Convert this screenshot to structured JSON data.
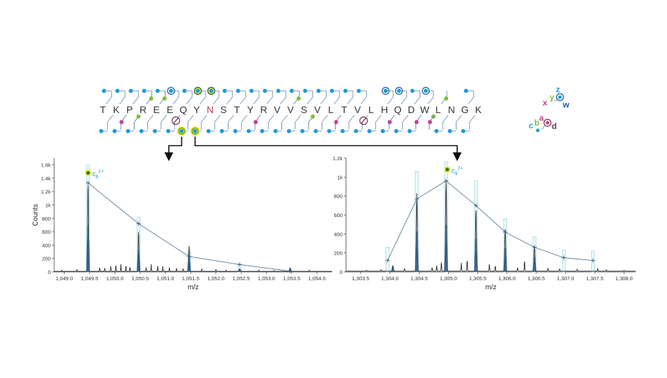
{
  "sequence": {
    "residues": [
      "T",
      "K",
      "P",
      "R",
      "E",
      "E",
      "Q",
      "Y",
      "N",
      "S",
      "T",
      "Y",
      "R",
      "V",
      "V",
      "S",
      "V",
      "L",
      "T",
      "V",
      "L",
      "H",
      "Q",
      "D",
      "W",
      "L",
      "N",
      "G",
      "K"
    ],
    "highlighted_residue_index": 8,
    "colors": {
      "residue": "#333333",
      "highlight": "#c0334d",
      "z_ion": "#1e9bd7",
      "y_ion": "#7dbd3f",
      "c_ion": "#1e9bd7",
      "b_ion": "#7dbd3f",
      "a_ion": "#c2449a",
      "ring": "#1a5a9a",
      "selected": "#f2ea1e",
      "unobserved": "#7a3050"
    },
    "top_ions": [
      {
        "after": 0,
        "kind": "z"
      },
      {
        "after": 1,
        "kind": "z"
      },
      {
        "after": 2,
        "kind": "z"
      },
      {
        "after": 3,
        "kind": "z"
      },
      {
        "after": 3,
        "kind": "y"
      },
      {
        "after": 4,
        "kind": "z"
      },
      {
        "after": 4,
        "kind": "y"
      },
      {
        "after": 5,
        "kind": "z-ring"
      },
      {
        "after": 6,
        "kind": "z"
      },
      {
        "after": 7,
        "kind": "z-selected"
      },
      {
        "after": 8,
        "kind": "z-selected"
      },
      {
        "after": 9,
        "kind": "z"
      },
      {
        "after": 10,
        "kind": "z"
      },
      {
        "after": 11,
        "kind": "z"
      },
      {
        "after": 12,
        "kind": "z"
      },
      {
        "after": 13,
        "kind": "z"
      },
      {
        "after": 14,
        "kind": "z"
      },
      {
        "after": 14,
        "kind": "y"
      },
      {
        "after": 15,
        "kind": "z"
      },
      {
        "after": 16,
        "kind": "z"
      },
      {
        "after": 17,
        "kind": "z"
      },
      {
        "after": 18,
        "kind": "z"
      },
      {
        "after": 19,
        "kind": "z"
      },
      {
        "after": 21,
        "kind": "z-ring"
      },
      {
        "after": 22,
        "kind": "z-ring"
      },
      {
        "after": 23,
        "kind": "z"
      },
      {
        "after": 24,
        "kind": "z-ring"
      },
      {
        "after": 25,
        "kind": "y"
      },
      {
        "after": 27,
        "kind": "z"
      }
    ],
    "bottom_ions": [
      {
        "after": 0,
        "kind": "c"
      },
      {
        "after": 1,
        "kind": "c"
      },
      {
        "after": 1,
        "kind": "a"
      },
      {
        "after": 2,
        "kind": "c"
      },
      {
        "after": 2,
        "kind": "b"
      },
      {
        "after": 3,
        "kind": "c"
      },
      {
        "after": 4,
        "kind": "c"
      },
      {
        "after": 5,
        "kind": "unobserved"
      },
      {
        "after": 6,
        "kind": "c-selected"
      },
      {
        "after": 7,
        "kind": "c-selected"
      },
      {
        "after": 8,
        "kind": "c"
      },
      {
        "after": 9,
        "kind": "c"
      },
      {
        "after": 10,
        "kind": "c"
      },
      {
        "after": 11,
        "kind": "c"
      },
      {
        "after": 11,
        "kind": "a"
      },
      {
        "after": 12,
        "kind": "c"
      },
      {
        "after": 13,
        "kind": "c"
      },
      {
        "after": 14,
        "kind": "c"
      },
      {
        "after": 15,
        "kind": "c"
      },
      {
        "after": 15,
        "kind": "b"
      },
      {
        "after": 16,
        "kind": "c"
      },
      {
        "after": 17,
        "kind": "c"
      },
      {
        "after": 17,
        "kind": "a"
      },
      {
        "after": 18,
        "kind": "c"
      },
      {
        "after": 19,
        "kind": "unobserved"
      },
      {
        "after": 20,
        "kind": "c"
      },
      {
        "after": 21,
        "kind": "c"
      },
      {
        "after": 21,
        "kind": "a"
      },
      {
        "after": 22,
        "kind": "c"
      },
      {
        "after": 23,
        "kind": "c"
      },
      {
        "after": 23,
        "kind": "a"
      },
      {
        "after": 24,
        "kind": "b"
      },
      {
        "after": 24,
        "kind": "a"
      },
      {
        "after": 25,
        "kind": "c"
      },
      {
        "after": 26,
        "kind": "c"
      },
      {
        "after": 27,
        "kind": "c"
      }
    ],
    "selected_links": [
      {
        "from_ion_after": 6,
        "to_panel": 0
      },
      {
        "from_ion_after": 7,
        "to_panel": 1
      }
    ]
  },
  "legend": {
    "labels": [
      "z",
      "w",
      "y",
      "x",
      "a",
      "d",
      "b",
      "c"
    ]
  },
  "chart_data": [
    {
      "type": "line",
      "xlabel": "m/z",
      "ylabel": "Counts",
      "xlim": [
        1048.8,
        1054.3
      ],
      "ylim": [
        0,
        1700
      ],
      "x_ticks": [
        1049.0,
        1049.5,
        1050.0,
        1050.5,
        1051.0,
        1051.5,
        1052.0,
        1052.5,
        1053.0,
        1053.5,
        1054.0
      ],
      "x_tick_labels": [
        "1,049.0",
        "1,049.5",
        "1,050.0",
        "1,050.5",
        "1,051.0",
        "1,051.5",
        "1,052.0",
        "1,052.5",
        "1,053.0",
        "1,053.5",
        "1,054.0"
      ],
      "y_ticks": [
        0,
        200,
        400,
        600,
        800,
        1000,
        1200,
        1400,
        1600
      ],
      "y_tick_labels": [
        "0",
        "200",
        "400",
        "600",
        "800",
        "1k",
        "1.2k",
        "1.4k",
        "1.6k"
      ],
      "ion_label": {
        "base": "c",
        "sub": "8",
        "sup": "1+",
        "x": 1049.47,
        "y": 1480
      },
      "peaks": [
        {
          "x": 1049.47,
          "y": 1330
        },
        {
          "x": 1050.47,
          "y": 600
        },
        {
          "x": 1051.47,
          "y": 380
        },
        {
          "x": 1052.47,
          "y": 40
        },
        {
          "x": 1053.47,
          "y": 50
        }
      ],
      "noise": [
        {
          "x": 1048.95,
          "y": 20
        },
        {
          "x": 1049.25,
          "y": 30
        },
        {
          "x": 1049.7,
          "y": 60
        },
        {
          "x": 1049.8,
          "y": 50
        },
        {
          "x": 1049.92,
          "y": 80
        },
        {
          "x": 1050.02,
          "y": 100
        },
        {
          "x": 1050.12,
          "y": 110
        },
        {
          "x": 1050.22,
          "y": 90
        },
        {
          "x": 1050.3,
          "y": 70
        },
        {
          "x": 1050.62,
          "y": 60
        },
        {
          "x": 1050.72,
          "y": 110
        },
        {
          "x": 1050.85,
          "y": 90
        },
        {
          "x": 1050.95,
          "y": 80
        },
        {
          "x": 1051.08,
          "y": 60
        },
        {
          "x": 1051.22,
          "y": 50
        },
        {
          "x": 1051.35,
          "y": 40
        },
        {
          "x": 1051.72,
          "y": 40
        },
        {
          "x": 1052.0,
          "y": 30
        },
        {
          "x": 1052.2,
          "y": 20
        },
        {
          "x": 1052.85,
          "y": 20
        },
        {
          "x": 1053.15,
          "y": 15
        },
        {
          "x": 1053.85,
          "y": 20
        }
      ],
      "envelope": [
        {
          "x": 1049.47,
          "y": 1330
        },
        {
          "x": 1050.47,
          "y": 720
        },
        {
          "x": 1051.47,
          "y": 230
        },
        {
          "x": 1052.47,
          "y": 110
        },
        {
          "x": 1053.47,
          "y": 10
        }
      ],
      "theoretical": [
        {
          "x": 1049.47,
          "y": 1600
        },
        {
          "x": 1050.47,
          "y": 820
        },
        {
          "x": 1051.47,
          "y": 300
        },
        {
          "x": 1052.47,
          "y": 120
        }
      ]
    },
    {
      "type": "line",
      "xlabel": "m/z",
      "ylabel": "",
      "xlim": [
        1303.25,
        1308.2
      ],
      "ylim": [
        0,
        1200
      ],
      "x_ticks": [
        1303.5,
        1304.0,
        1304.5,
        1305.0,
        1305.5,
        1306.0,
        1306.5,
        1307.0,
        1307.5,
        1308.0
      ],
      "x_tick_labels": [
        "1,303.5",
        "1,304.0",
        "1,304.5",
        "1,305.0",
        "1,305.5",
        "1,306.0",
        "1,306.5",
        "1,307.0",
        "1,307.5",
        "1,308.0"
      ],
      "y_ticks": [
        0,
        200,
        400,
        600,
        800,
        1000,
        1200
      ],
      "y_tick_labels": [
        "0",
        "200",
        "400",
        "600",
        "800",
        "1k",
        "1.2k"
      ],
      "ion_label": {
        "base": "c",
        "sub": "9",
        "sup": "2+",
        "x": 1304.98,
        "y": 1080
      },
      "peaks": [
        {
          "x": 1304.46,
          "y": 820
        },
        {
          "x": 1304.96,
          "y": 960
        },
        {
          "x": 1305.47,
          "y": 660
        },
        {
          "x": 1305.97,
          "y": 460
        },
        {
          "x": 1306.47,
          "y": 270
        },
        {
          "x": 1304.05,
          "y": 60
        }
      ],
      "noise": [
        {
          "x": 1303.6,
          "y": 10
        },
        {
          "x": 1303.85,
          "y": 15
        },
        {
          "x": 1304.25,
          "y": 30
        },
        {
          "x": 1304.72,
          "y": 40
        },
        {
          "x": 1304.8,
          "y": 60
        },
        {
          "x": 1304.88,
          "y": 100
        },
        {
          "x": 1305.22,
          "y": 90
        },
        {
          "x": 1305.32,
          "y": 120
        },
        {
          "x": 1305.7,
          "y": 80
        },
        {
          "x": 1305.8,
          "y": 60
        },
        {
          "x": 1306.18,
          "y": 40
        },
        {
          "x": 1306.3,
          "y": 120
        },
        {
          "x": 1306.7,
          "y": 30
        },
        {
          "x": 1306.9,
          "y": 25
        },
        {
          "x": 1307.2,
          "y": 20
        },
        {
          "x": 1307.55,
          "y": 30
        },
        {
          "x": 1307.7,
          "y": 15
        },
        {
          "x": 1308.0,
          "y": 10
        }
      ],
      "envelope": [
        {
          "x": 1303.96,
          "y": 120
        },
        {
          "x": 1304.46,
          "y": 770
        },
        {
          "x": 1304.96,
          "y": 960
        },
        {
          "x": 1305.47,
          "y": 700
        },
        {
          "x": 1305.97,
          "y": 420
        },
        {
          "x": 1306.47,
          "y": 260
        },
        {
          "x": 1306.97,
          "y": 150
        },
        {
          "x": 1307.47,
          "y": 120
        }
      ],
      "theoretical": [
        {
          "x": 1303.96,
          "y": 260
        },
        {
          "x": 1304.46,
          "y": 1060
        },
        {
          "x": 1304.96,
          "y": 1160
        },
        {
          "x": 1305.47,
          "y": 960
        },
        {
          "x": 1305.97,
          "y": 560
        },
        {
          "x": 1306.47,
          "y": 370
        },
        {
          "x": 1306.97,
          "y": 230
        },
        {
          "x": 1307.47,
          "y": 220
        }
      ]
    }
  ]
}
